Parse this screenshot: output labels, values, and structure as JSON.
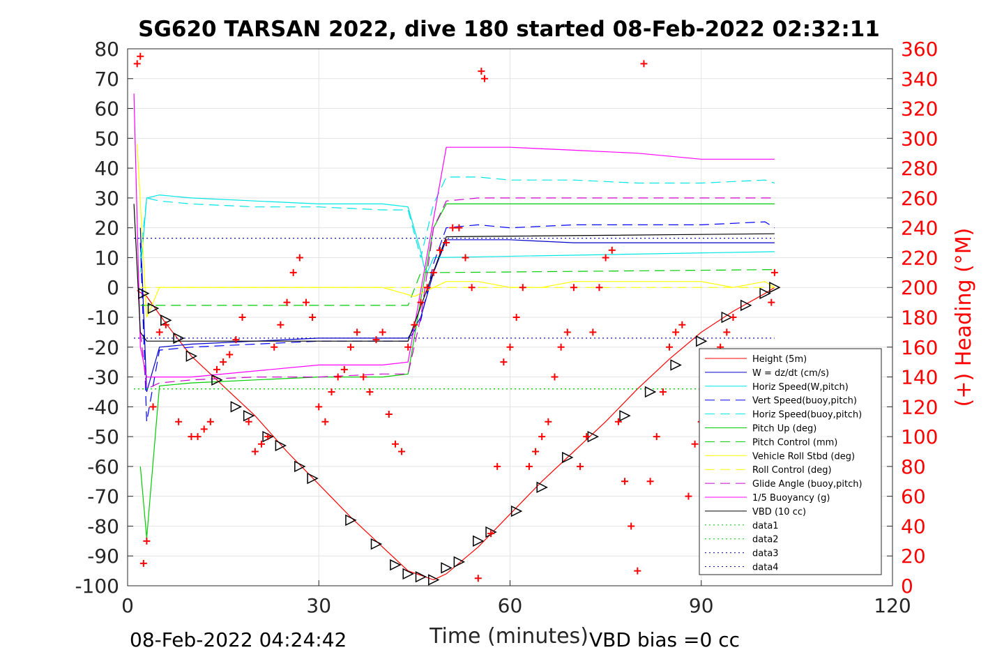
{
  "title": "SG620 TARSAN 2022, dive 180 started 08-Feb-2022 02:32:11",
  "footer": {
    "left": "08-Feb-2022 04:24:42",
    "right": "VBD bias =0 cc"
  },
  "colors": {
    "height": "#ff0000",
    "w": "#0000cc",
    "horiz_w": "#00e5e5",
    "vert_buoy": "#0000ff",
    "horiz_buoy": "#00e5e5",
    "pitch": "#00cc00",
    "pitch_ctrl": "#00cc00",
    "roll": "#ffff00",
    "roll_ctrl": "#ffff00",
    "glide": "#cc00cc",
    "buoyancy": "#ff00ff",
    "vbd": "#000000",
    "heading": "#ff0000"
  },
  "chart_data": {
    "type": "line",
    "xlabel": "Time (minutes)",
    "ylabel": "",
    "y2label": "(+) Heading (°M)",
    "xlim": [
      0,
      120
    ],
    "ylim": [
      -100,
      80
    ],
    "y2lim": [
      0,
      360
    ],
    "xticks": [
      "0",
      "30",
      "60",
      "90",
      "120"
    ],
    "yticks": [
      "80",
      "70",
      "60",
      "50",
      "40",
      "30",
      "20",
      "10",
      "0",
      "-10",
      "-20",
      "-30",
      "-40",
      "-50",
      "-60",
      "-70",
      "-80",
      "-90",
      "-100"
    ],
    "y2ticks": [
      "360",
      "340",
      "320",
      "300",
      "280",
      "260",
      "240",
      "220",
      "200",
      "180",
      "160",
      "140",
      "120",
      "100",
      "80",
      "60",
      "40",
      "20",
      "0"
    ],
    "grid": true,
    "legend_position": "bottom-right",
    "legend": [
      {
        "label": "Height (5m)",
        "color": "#ff0000",
        "style": "solid"
      },
      {
        "label": "W = dz/dt (cm/s)",
        "color": "#0000cc",
        "style": "solid"
      },
      {
        "label": "Horiz Speed(W,pitch)",
        "color": "#00e5e5",
        "style": "solid"
      },
      {
        "label": "Vert Speed(buoy,pitch)",
        "color": "#0000ff",
        "style": "dashed"
      },
      {
        "label": "Horiz Speed(buoy,pitch)",
        "color": "#00e5e5",
        "style": "dashed"
      },
      {
        "label": "Pitch Up (deg)",
        "color": "#00cc00",
        "style": "solid"
      },
      {
        "label": "Pitch Control (mm)",
        "color": "#00cc00",
        "style": "dashed"
      },
      {
        "label": "Vehicle Roll Stbd (deg)",
        "color": "#ffff00",
        "style": "solid"
      },
      {
        "label": "Roll Control (deg)",
        "color": "#ffff00",
        "style": "dashed"
      },
      {
        "label": "Glide Angle (buoy,pitch)",
        "color": "#cc00cc",
        "style": "dashed"
      },
      {
        "label": "1/5 Buoyancy (g)",
        "color": "#ff00ff",
        "style": "solid"
      },
      {
        "label": "VBD (10 cc)",
        "color": "#000000",
        "style": "solid"
      },
      {
        "label": "data1",
        "color": "#00cc00",
        "style": "dotted"
      },
      {
        "label": "data2",
        "color": "#00cc00",
        "style": "dotted"
      },
      {
        "label": "data3",
        "color": "#0000aa",
        "style": "dotted"
      },
      {
        "label": "data4",
        "color": "#0000aa",
        "style": "dotted"
      }
    ],
    "series": [
      {
        "name": "Height (5m)",
        "x": [
          1.5,
          3,
          6,
          10,
          15,
          20,
          25,
          30,
          35,
          40,
          44,
          48,
          50,
          55,
          60,
          65,
          70,
          75,
          80,
          85,
          90,
          95,
          100,
          101.5
        ],
        "y": [
          -1,
          -3,
          -12,
          -23,
          -33,
          -43,
          -55,
          -66,
          -77,
          -87,
          -95,
          -98,
          -96,
          -87,
          -76,
          -65,
          -55,
          -45,
          -34,
          -24,
          -15,
          -8,
          -2,
          0
        ]
      },
      {
        "name": "W = dz/dt (cm/s)",
        "x": [
          2,
          3,
          5,
          10,
          20,
          30,
          40,
          44,
          46,
          48,
          50,
          55,
          60,
          70,
          80,
          90,
          100,
          101.5
        ],
        "y": [
          20,
          -35,
          -20,
          -19,
          -18,
          -17,
          -17,
          -17,
          -10,
          5,
          16,
          16,
          16,
          15,
          15,
          15,
          15,
          15
        ]
      },
      {
        "name": "Horiz Speed(W,pitch)",
        "x": [
          2,
          3,
          5,
          10,
          20,
          30,
          40,
          44,
          46,
          46.5,
          47,
          48,
          101.5
        ],
        "y": [
          5,
          30,
          31,
          30,
          29,
          28,
          28,
          27,
          12,
          7,
          5,
          10,
          12
        ]
      },
      {
        "name": "Vert Speed(buoy,pitch)",
        "x": [
          2,
          3,
          5,
          10,
          20,
          30,
          40,
          44,
          46,
          48,
          50,
          55,
          60,
          70,
          80,
          90,
          100,
          101.5
        ],
        "y": [
          15,
          -45,
          -21,
          -20,
          -19,
          -18,
          -18,
          -18,
          -11,
          8,
          20,
          21,
          20,
          21,
          21,
          21,
          22,
          20
        ]
      },
      {
        "name": "Horiz Speed(buoy,pitch)",
        "x": [
          2,
          3,
          5,
          10,
          20,
          30,
          40,
          44,
          46,
          48,
          50,
          55,
          60,
          70,
          80,
          90,
          100,
          101.5
        ],
        "y": [
          10,
          30,
          29,
          28,
          27,
          27,
          26,
          26,
          10,
          28,
          37,
          37,
          36,
          36,
          35,
          35,
          36,
          35
        ]
      },
      {
        "name": "Pitch Up (deg)",
        "x": [
          2,
          3,
          5,
          10,
          20,
          30,
          40,
          44,
          46,
          48,
          50,
          55,
          60,
          70,
          80,
          90,
          100,
          101.5
        ],
        "y": [
          -60,
          -84,
          -33,
          -32,
          -31,
          -30,
          -30,
          -29,
          -4,
          20,
          28,
          28,
          28,
          28,
          28,
          28,
          28,
          28
        ]
      },
      {
        "name": "Pitch Control (mm)",
        "x": [
          2,
          5,
          44,
          46,
          50,
          101.5
        ],
        "y": [
          -6,
          -6,
          -6,
          5,
          5,
          6
        ]
      },
      {
        "name": "Vehicle Roll Stbd (deg)",
        "x": [
          1.5,
          3,
          5,
          8,
          10,
          15,
          20,
          25,
          30,
          35,
          40,
          45,
          50,
          55,
          60,
          65,
          70,
          75,
          80,
          85,
          90,
          95,
          100,
          101.5
        ],
        "y": [
          48,
          -10,
          0,
          0,
          0,
          0,
          0,
          0,
          0,
          0,
          0,
          -3,
          2,
          2,
          0,
          0,
          2,
          2,
          2,
          2,
          2,
          0,
          2,
          0
        ]
      },
      {
        "name": "Roll Control (deg)",
        "x": [
          2,
          101.5
        ],
        "y": [
          0,
          0
        ]
      },
      {
        "name": "Glide Angle (buoy,pitch)",
        "x": [
          2,
          3,
          5,
          10,
          20,
          30,
          40,
          44,
          46,
          48,
          50,
          55,
          60,
          70,
          80,
          90,
          100,
          101.5
        ],
        "y": [
          -15,
          -34,
          -32,
          -31,
          -30,
          -30,
          -29,
          -29,
          -10,
          20,
          29,
          30,
          30,
          30,
          30,
          30,
          30,
          30
        ]
      },
      {
        "name": "1/5 Buoyancy (g)",
        "x": [
          1,
          2,
          3,
          10,
          20,
          30,
          40,
          44,
          50,
          60,
          70,
          80,
          90,
          100,
          101.5
        ],
        "y": [
          65,
          -20,
          -30,
          -30,
          -28,
          -26,
          -26,
          -25,
          47,
          47,
          46,
          45,
          43,
          43,
          43
        ]
      },
      {
        "name": "VBD (10 cc)",
        "x": [
          1,
          2,
          3,
          10,
          30,
          44,
          50,
          101.5
        ],
        "y": [
          28,
          -15,
          -18,
          -18,
          -18,
          -18,
          17,
          18
        ]
      },
      {
        "name": "data1",
        "x": [
          1,
          101.5
        ],
        "y": [
          -34,
          -34
        ]
      },
      {
        "name": "data2",
        "x": [
          1,
          101.5
        ],
        "y": [
          -34,
          -34
        ]
      },
      {
        "name": "data3",
        "x": [
          1,
          101.5
        ],
        "y": [
          16.5,
          16.5
        ]
      },
      {
        "name": "data4",
        "x": [
          1,
          101.5
        ],
        "y": [
          -17,
          -17
        ]
      }
    ],
    "height_markers": {
      "series": "Height (5m)",
      "marker": "triangle",
      "x": [
        2.5,
        4,
        6,
        8,
        10,
        14,
        17,
        19,
        22,
        24,
        27,
        29,
        35,
        39,
        42,
        44,
        46,
        48,
        50,
        52,
        55,
        57,
        61,
        65,
        69,
        73,
        78,
        82,
        86,
        90,
        94,
        97,
        100,
        101.5
      ],
      "y": [
        -2,
        -7,
        -11,
        -17,
        -23,
        -31,
        -40,
        -43,
        -50,
        -53,
        -60,
        -64,
        -78,
        -86,
        -93,
        -96,
        -97,
        -98,
        -94,
        -92,
        -85,
        -82,
        -75,
        -67,
        -57,
        -50,
        -43,
        -35,
        -26,
        -18,
        -10,
        -6,
        -2,
        0
      ]
    },
    "heading": {
      "name": "(+) Heading (°M)",
      "axis": "right",
      "marker": "plus",
      "x": [
        1.5,
        2,
        2.5,
        3,
        4,
        5,
        6,
        8,
        10,
        11,
        12,
        13,
        14,
        15,
        16,
        17,
        18,
        19,
        20,
        21,
        22,
        23,
        24,
        25,
        26,
        27,
        28,
        29,
        30,
        31,
        32,
        33,
        34,
        35,
        36,
        37,
        38,
        39,
        40,
        41,
        42,
        43,
        44,
        45,
        46,
        47,
        48,
        49,
        50,
        51,
        52,
        53,
        54,
        55,
        55.5,
        56,
        57,
        58,
        59,
        60,
        61,
        62,
        63,
        64,
        65,
        66,
        67,
        68,
        69,
        70,
        71,
        72,
        73,
        74,
        75,
        76,
        77,
        78,
        79,
        80,
        81,
        82,
        83,
        84,
        85,
        86,
        87,
        88,
        89,
        90,
        91,
        92,
        93,
        94,
        95,
        96,
        97,
        98,
        99,
        100,
        101,
        101.5
      ],
      "y": [
        350,
        355,
        15,
        30,
        120,
        170,
        175,
        110,
        100,
        100,
        105,
        110,
        145,
        150,
        155,
        165,
        180,
        110,
        90,
        95,
        100,
        160,
        175,
        190,
        210,
        220,
        190,
        180,
        120,
        110,
        130,
        140,
        145,
        160,
        170,
        140,
        130,
        165,
        170,
        115,
        95,
        90,
        160,
        175,
        190,
        200,
        210,
        225,
        230,
        240,
        240,
        220,
        200,
        5,
        345,
        340,
        35,
        80,
        150,
        160,
        180,
        200,
        80,
        90,
        100,
        110,
        140,
        160,
        170,
        200,
        80,
        100,
        170,
        200,
        220,
        225,
        110,
        70,
        40,
        10,
        350,
        70,
        100,
        130,
        160,
        170,
        175,
        60,
        95,
        110,
        120,
        140,
        160,
        170,
        180,
        130,
        110,
        120,
        130,
        150,
        190,
        210
      ]
    }
  }
}
